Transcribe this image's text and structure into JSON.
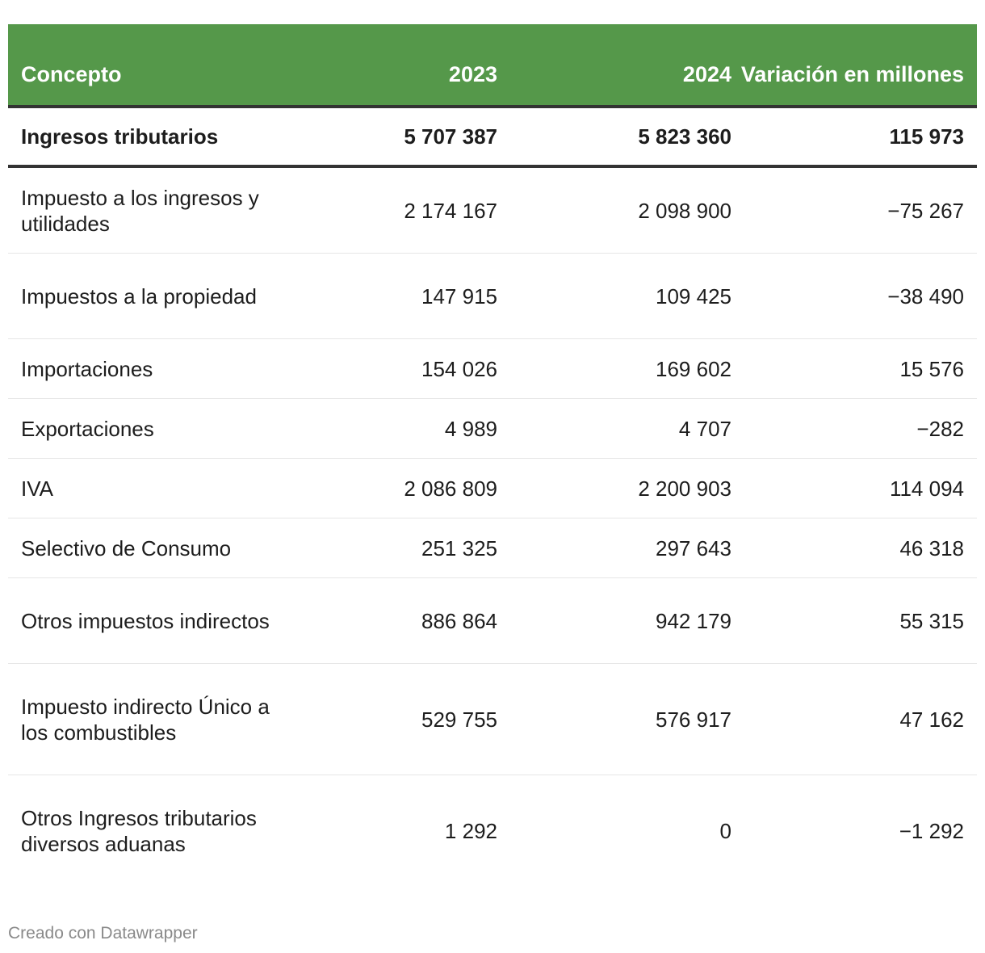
{
  "chart_data": {
    "type": "table",
    "columns": [
      "Concepto",
      "2023",
      "2024",
      "Variación en millones"
    ],
    "total": {
      "label": "Ingresos tributarios",
      "v2023": "5 707 387",
      "v2024": "5 823 360",
      "variation": "115 973"
    },
    "rows": [
      {
        "label": "Impuesto a los ingresos y utilidades",
        "v2023": "2 174 167",
        "v2024": "2 098 900",
        "variation": "−75 267"
      },
      {
        "label": "Impuestos a la propiedad",
        "v2023": "147 915",
        "v2024": "109 425",
        "variation": "−38 490"
      },
      {
        "label": "Importaciones",
        "v2023": "154 026",
        "v2024": "169 602",
        "variation": "15 576"
      },
      {
        "label": "Exportaciones",
        "v2023": "4 989",
        "v2024": "4 707",
        "variation": "−282"
      },
      {
        "label": "IVA",
        "v2023": "2 086 809",
        "v2024": "2 200 903",
        "variation": "114 094"
      },
      {
        "label": "Selectivo de Consumo",
        "v2023": "251 325",
        "v2024": "297 643",
        "variation": "46 318"
      },
      {
        "label": "Otros impuestos indirectos",
        "v2023": "886 864",
        "v2024": "942 179",
        "variation": "55 315"
      },
      {
        "label": "Impuesto indirecto Único a los combustibles",
        "v2023": "529 755",
        "v2024": "576 917",
        "variation": "47 162"
      },
      {
        "label": "Otros Ingresos tributarios diversos aduanas",
        "v2023": "1 292",
        "v2024": "0",
        "variation": "−1 292"
      }
    ]
  },
  "footer": {
    "credit": "Creado con Datawrapper"
  },
  "colors": {
    "header_bg": "#55984a",
    "header_text": "#ffffff",
    "rule": "#333333"
  }
}
